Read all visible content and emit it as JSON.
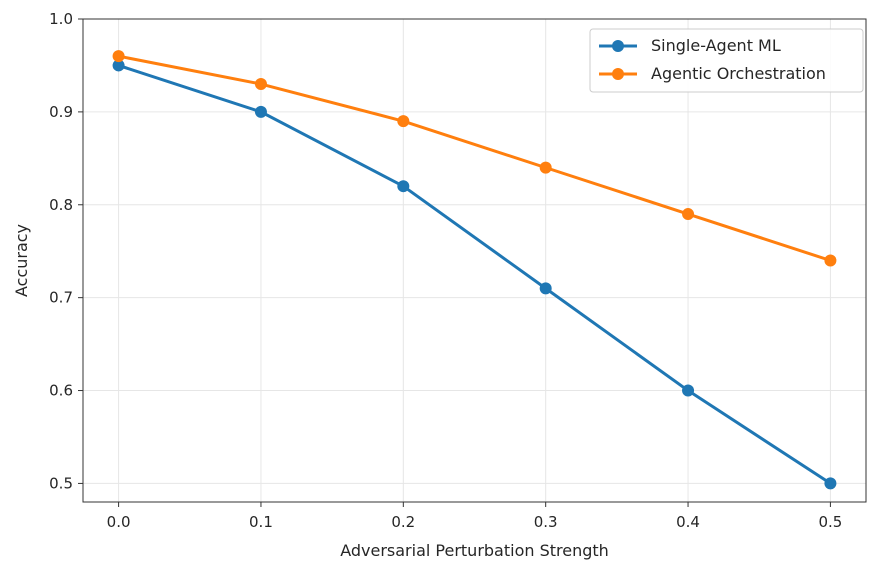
{
  "chart_data": {
    "type": "line",
    "xlabel": "Adversarial Perturbation Strength",
    "ylabel": "Accuracy",
    "x": [
      0.0,
      0.1,
      0.2,
      0.3,
      0.4,
      0.5
    ],
    "x_ticks": [
      "0.0",
      "0.1",
      "0.2",
      "0.3",
      "0.4",
      "0.5"
    ],
    "y_ticks": [
      "0.5",
      "0.6",
      "0.7",
      "0.8",
      "0.9",
      "1.0"
    ],
    "xlim": [
      -0.025,
      0.525
    ],
    "ylim": [
      0.48,
      1.0
    ],
    "grid": true,
    "legend_position": "top-right",
    "series": [
      {
        "name": "Single-Agent ML",
        "color": "#1f77b4",
        "marker": "circle",
        "values": [
          0.95,
          0.9,
          0.82,
          0.71,
          0.6,
          0.5
        ]
      },
      {
        "name": "Agentic Orchestration",
        "color": "#ff7f0e",
        "marker": "circle",
        "values": [
          0.96,
          0.93,
          0.89,
          0.84,
          0.79,
          0.74
        ]
      }
    ]
  }
}
